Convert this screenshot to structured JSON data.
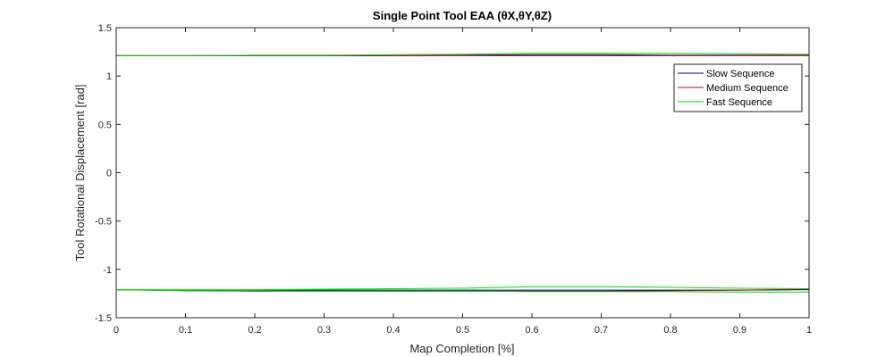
{
  "chart_data": {
    "type": "line",
    "title": "Single Point Tool EAA (θX,θY,θZ)",
    "xlabel": "Map Completion [%]",
    "ylabel": "Tool Rotational Displacement [rad]",
    "xlim": [
      0,
      1
    ],
    "ylim": [
      -1.5,
      1.5
    ],
    "xticks": [
      0,
      0.1,
      0.2,
      0.3,
      0.4,
      0.5,
      0.6,
      0.7,
      0.8,
      0.9,
      1
    ],
    "xtick_labels": [
      "0",
      "0.1",
      "0.2",
      "0.3",
      "0.4",
      "0.5",
      "0.6",
      "0.7",
      "0.8",
      "0.9",
      "1"
    ],
    "yticks": [
      1.5,
      1,
      0.5,
      0,
      -0.5,
      -1,
      -1.5
    ],
    "ytick_labels": [
      "1.5",
      "1",
      "0.5",
      "0",
      "-0.5",
      "-1",
      "-1.5"
    ],
    "grid": false,
    "legend_position": "top-right",
    "series": [
      {
        "name": "Slow Sequence",
        "color": "#000080",
        "lines": [
          {
            "x": [
              0,
              0.1,
              0.2,
              0.3,
              0.4,
              0.5,
              0.6,
              0.7,
              0.8,
              0.9,
              1
            ],
            "y": [
              1.21,
              1.21,
              1.21,
              1.21,
              1.21,
              1.215,
              1.22,
              1.22,
              1.215,
              1.215,
              1.215
            ]
          },
          {
            "x": [
              0,
              0.1,
              0.2,
              0.3,
              0.4,
              0.5,
              0.6,
              0.7,
              0.8,
              0.9,
              1
            ],
            "y": [
              -1.21,
              -1.215,
              -1.215,
              -1.215,
              -1.215,
              -1.215,
              -1.215,
              -1.215,
              -1.215,
              -1.215,
              -1.21
            ]
          }
        ]
      },
      {
        "name": "Medium Sequence",
        "color": "#b0003a",
        "lines": [
          {
            "x": [
              0,
              0.1,
              0.2,
              0.3,
              0.4,
              0.5,
              0.6,
              0.7,
              0.8,
              0.9,
              1
            ],
            "y": [
              1.21,
              1.21,
              1.21,
              1.21,
              1.21,
              1.21,
              1.21,
              1.21,
              1.21,
              1.21,
              1.21
            ]
          },
          {
            "x": [
              0,
              0.1,
              0.2,
              0.3,
              0.4,
              0.5,
              0.6,
              0.7,
              0.8,
              0.9,
              1
            ],
            "y": [
              -1.21,
              -1.22,
              -1.225,
              -1.225,
              -1.225,
              -1.225,
              -1.225,
              -1.225,
              -1.22,
              -1.215,
              -1.205
            ]
          }
        ]
      },
      {
        "name": "Fast Sequence",
        "color": "#00dd00",
        "lines": [
          {
            "x": [
              0,
              0.1,
              0.2,
              0.3,
              0.4,
              0.5,
              0.6,
              0.7,
              0.8,
              0.9,
              1
            ],
            "y": [
              1.21,
              1.21,
              1.215,
              1.215,
              1.22,
              1.225,
              1.235,
              1.235,
              1.235,
              1.23,
              1.225
            ]
          },
          {
            "x": [
              0,
              0.1,
              0.2,
              0.3,
              0.4,
              0.5,
              0.6,
              0.7,
              0.8,
              0.9,
              1
            ],
            "y": [
              -1.21,
              -1.21,
              -1.21,
              -1.205,
              -1.2,
              -1.195,
              -1.18,
              -1.18,
              -1.185,
              -1.195,
              -1.2
            ]
          },
          {
            "x": [
              0,
              0.1,
              0.2,
              0.3,
              0.4,
              0.5,
              0.6,
              0.7,
              0.8,
              0.9,
              1
            ],
            "y": [
              -1.21,
              -1.22,
              -1.22,
              -1.225,
              -1.225,
              -1.225,
              -1.23,
              -1.23,
              -1.23,
              -1.235,
              -1.235
            ]
          }
        ]
      }
    ]
  }
}
